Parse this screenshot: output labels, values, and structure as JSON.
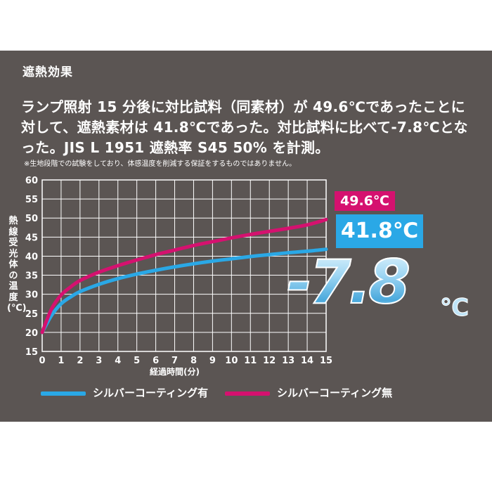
{
  "section_title": "遮熱効果",
  "description": "ランプ照射 15 分後に対比試料（同素材）が 49.6℃であったことに対して、遮熱素材は 41.8℃であった。対比試料に比べて-7.8℃となった。JIS L 1951 遮熱率 S45 50% を計測。",
  "note": "※生地段階での試験をしており、体感温度を削減する保証をするものではありません。",
  "highlight": {
    "magenta_value": "49.6℃",
    "blue_value": "41.8℃",
    "difference": "-7.8",
    "difference_unit": "℃"
  },
  "colors": {
    "panel_bg": "#5b5553",
    "with_coating": "#2aa8e6",
    "without_coating": "#d5116f",
    "grid": "#ffffff"
  },
  "chart_data": {
    "type": "line",
    "title": "",
    "xlabel": "経過時間(分)",
    "ylabel": "熱線受光体の温度(℃)",
    "xlim": [
      0,
      15
    ],
    "ylim": [
      15,
      60
    ],
    "x_ticks": [
      0,
      1,
      2,
      3,
      4,
      5,
      6,
      7,
      8,
      9,
      10,
      11,
      12,
      13,
      14,
      15
    ],
    "y_ticks": [
      15,
      20,
      25,
      30,
      35,
      40,
      45,
      50,
      55,
      60
    ],
    "grid": true,
    "legend_position": "bottom",
    "x": [
      0,
      0.5,
      1,
      1.5,
      2,
      3,
      4,
      5,
      6,
      7,
      8,
      9,
      10,
      11,
      12,
      13,
      14,
      15
    ],
    "series": [
      {
        "name": "シルバーコーティング有",
        "color": "#2aa8e6",
        "values": [
          20.0,
          24.5,
          27.5,
          29.3,
          30.7,
          32.6,
          34.1,
          35.3,
          36.3,
          37.2,
          38.0,
          38.7,
          39.3,
          39.9,
          40.4,
          40.9,
          41.3,
          41.8
        ]
      },
      {
        "name": "シルバーコーティング無",
        "color": "#d5116f",
        "values": [
          20.0,
          26.2,
          29.8,
          31.9,
          33.6,
          35.8,
          37.5,
          39.0,
          40.4,
          41.6,
          42.8,
          43.8,
          44.8,
          45.7,
          46.5,
          47.3,
          48.2,
          49.6
        ]
      }
    ]
  }
}
